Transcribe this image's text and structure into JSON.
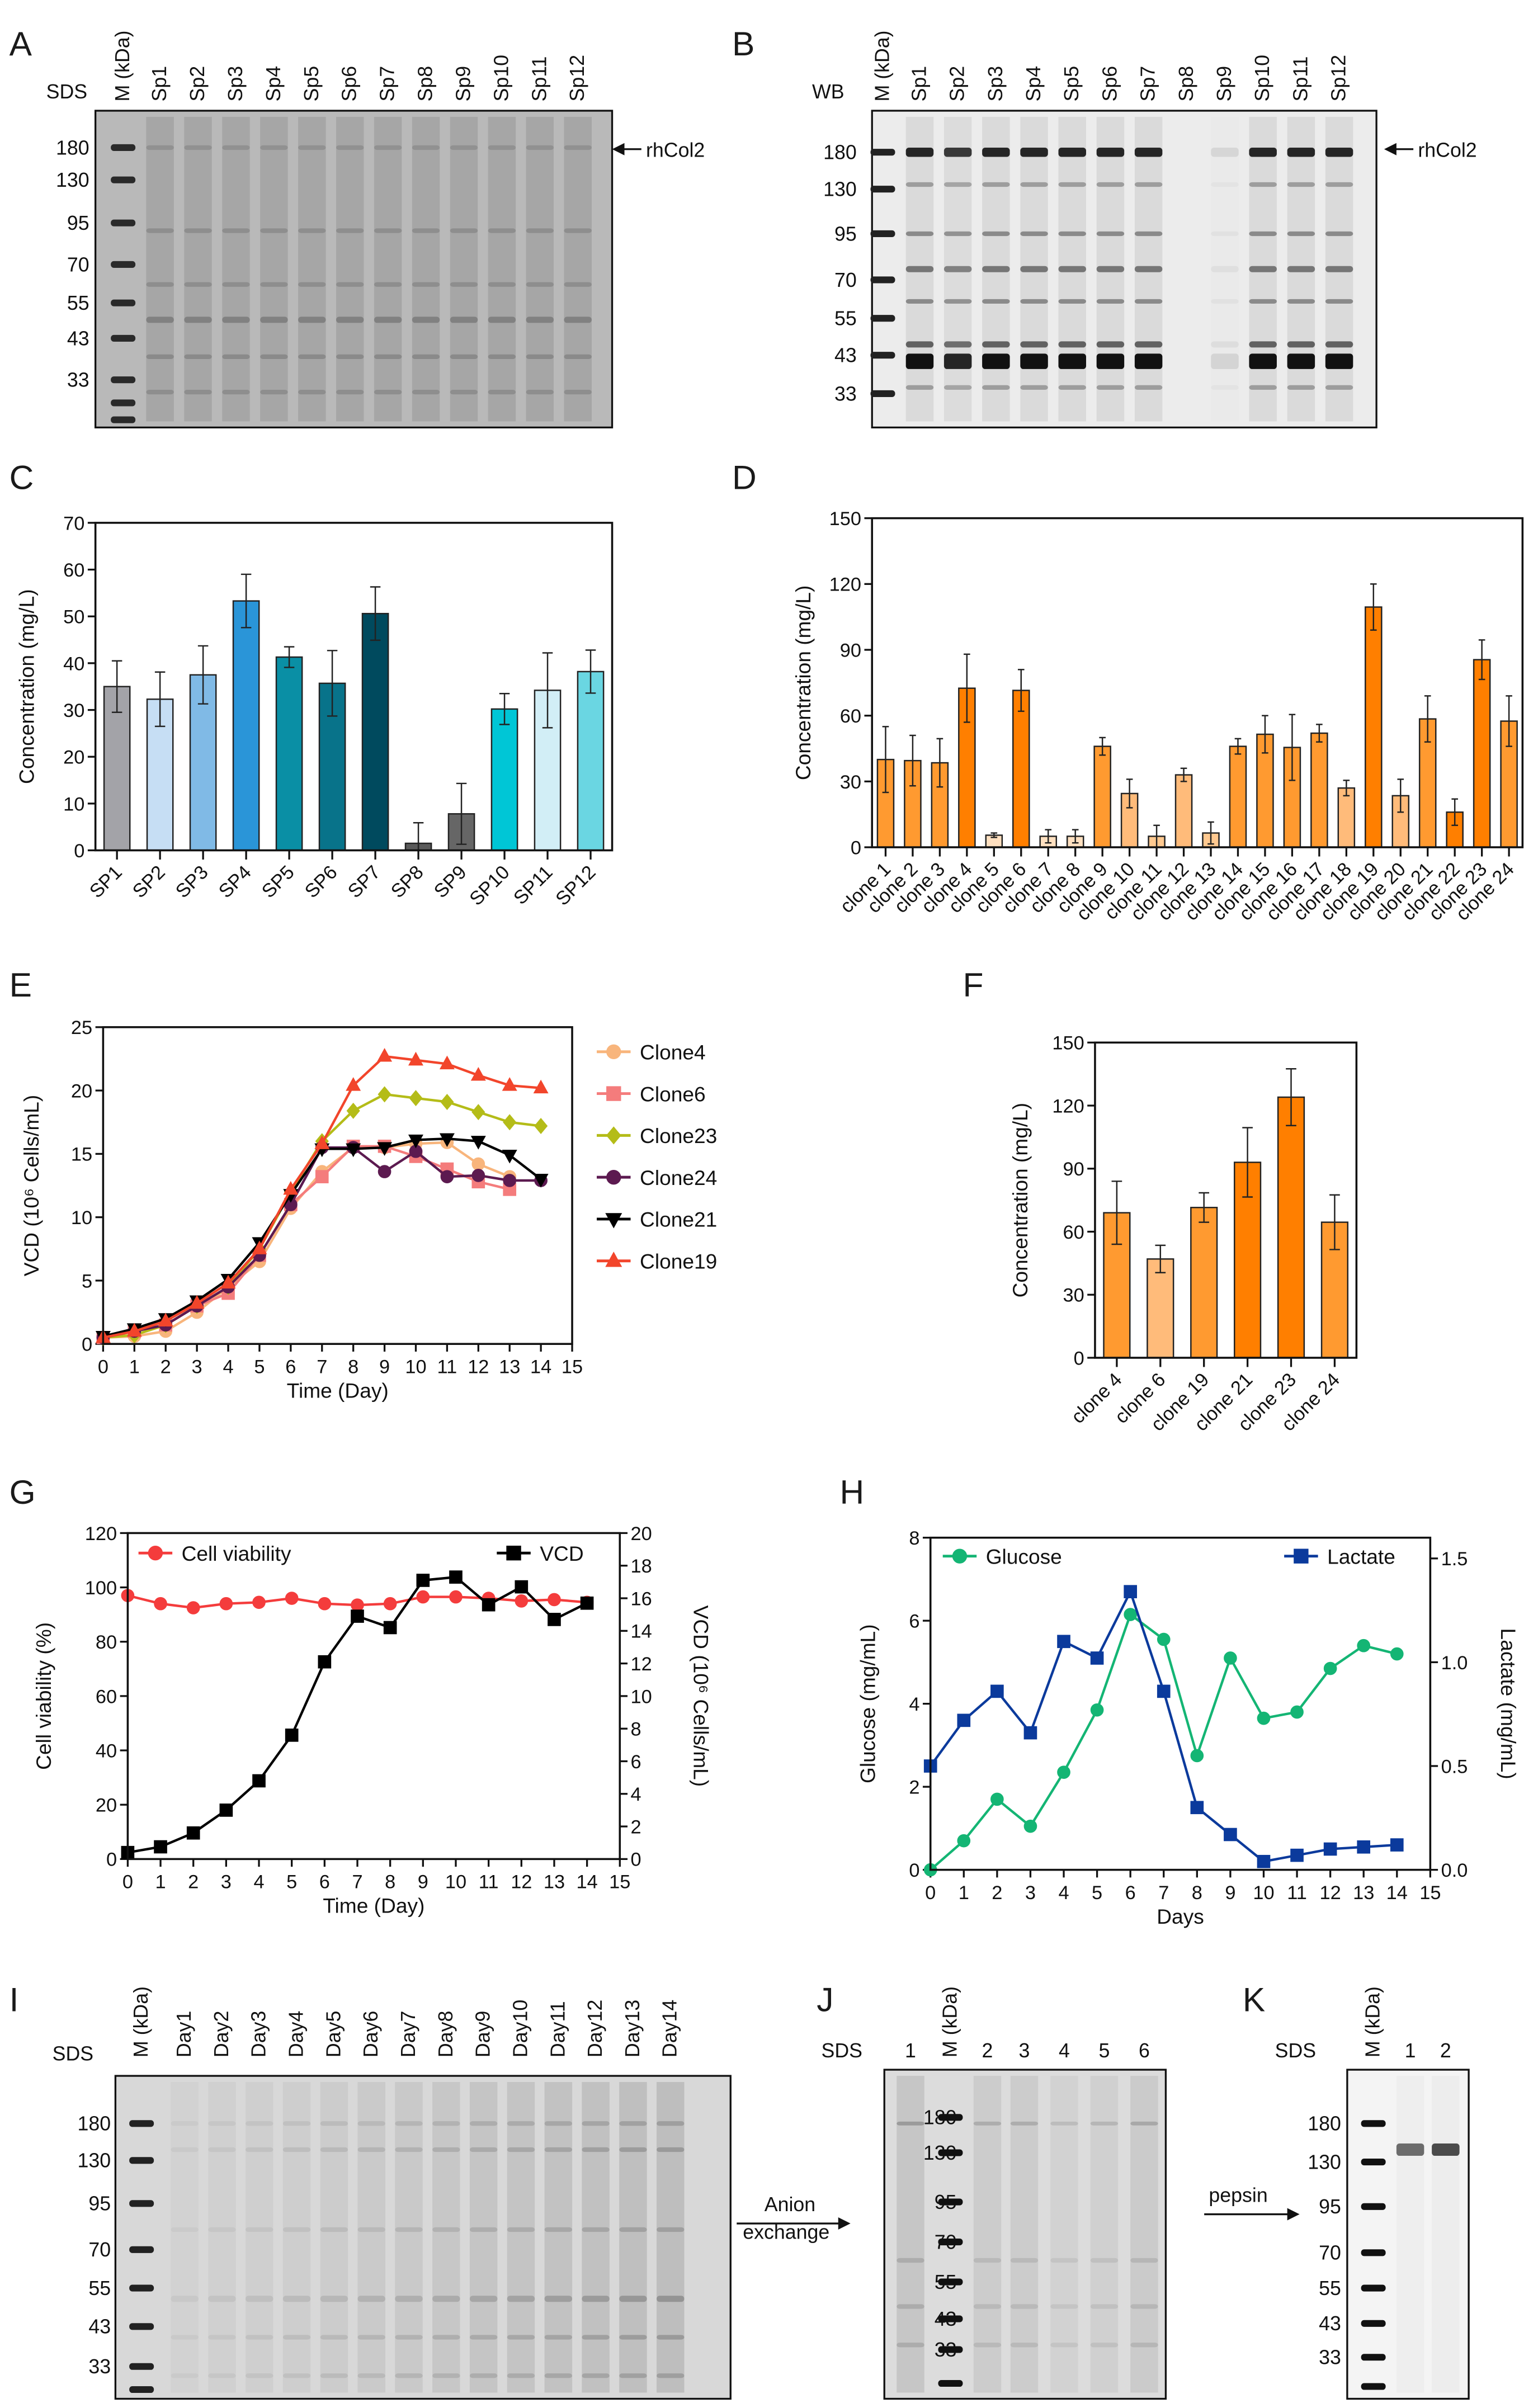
{
  "panels": {
    "A": {
      "letter": "A",
      "stain": "SDS",
      "marker_lane": "M (kDa)",
      "lanes": [
        "Sp1",
        "Sp2",
        "Sp3",
        "Sp4",
        "Sp5",
        "Sp6",
        "Sp7",
        "Sp8",
        "Sp9",
        "Sp10",
        "Sp11",
        "Sp12"
      ],
      "markers": [
        "180",
        "130",
        "95",
        "70",
        "55",
        "43",
        "33"
      ],
      "arrow_label": "rhCol2"
    },
    "B": {
      "letter": "B",
      "stain": "WB",
      "marker_lane": "M (kDa)",
      "lanes": [
        "Sp1",
        "Sp2",
        "Sp3",
        "Sp4",
        "Sp5",
        "Sp6",
        "Sp7",
        "Sp8",
        "Sp9",
        "Sp10",
        "Sp11",
        "Sp12"
      ],
      "markers": [
        "180",
        "130",
        "95",
        "70",
        "55",
        "43",
        "33"
      ],
      "arrow_label": "rhCol2"
    },
    "C": {
      "letter": "C"
    },
    "D": {
      "letter": "D"
    },
    "E": {
      "letter": "E"
    },
    "F": {
      "letter": "F"
    },
    "G": {
      "letter": "G"
    },
    "H": {
      "letter": "H"
    },
    "I": {
      "letter": "I",
      "stain": "SDS",
      "marker_lane": "M (kDa)",
      "lanes": [
        "Day1",
        "Day2",
        "Day3",
        "Day4",
        "Day5",
        "Day6",
        "Day7",
        "Day8",
        "Day9",
        "Day10",
        "Day11",
        "Day12",
        "Day13",
        "Day14"
      ],
      "markers": [
        "180",
        "130",
        "95",
        "70",
        "55",
        "43",
        "33"
      ],
      "arrow_label_1": "Anion",
      "arrow_label_2": "exchange"
    },
    "J": {
      "letter": "J",
      "stain": "SDS",
      "marker_lane": "M (kDa)",
      "lanes": [
        "1",
        "2",
        "3",
        "4",
        "5",
        "6"
      ],
      "markers": [
        "180",
        "130",
        "95",
        "70",
        "55",
        "43",
        "33"
      ],
      "arrow_label": "pepsin"
    },
    "K": {
      "letter": "K",
      "stain": "SDS",
      "marker_lane": "M (kDa)",
      "lanes": [
        "1",
        "2"
      ],
      "markers": [
        "180",
        "130",
        "95",
        "70",
        "55",
        "43",
        "33"
      ]
    }
  },
  "chart_data": [
    {
      "panel": "C",
      "type": "bar",
      "categories": [
        "SP1",
        "SP2",
        "SP3",
        "SP4",
        "SP5",
        "SP6",
        "SP7",
        "SP8",
        "SP9",
        "SP10",
        "SP11",
        "SP12"
      ],
      "values": [
        35.0,
        32.3,
        37.5,
        53.3,
        41.3,
        35.7,
        50.6,
        1.5,
        7.8,
        30.2,
        34.2,
        38.2
      ],
      "errors": [
        5.5,
        5.8,
        6.2,
        5.7,
        2.2,
        7.0,
        5.7,
        4.4,
        6.5,
        3.3,
        8.0,
        4.6
      ],
      "colors": [
        "#a3a3a8",
        "#c6def4",
        "#80bae6",
        "#2a95d8",
        "#0a8fa5",
        "#08738a",
        "#004a5e",
        "#5a5a5a",
        "#666666",
        "#00c6d6",
        "#d2eef6",
        "#6ad6e2"
      ],
      "ylabel": "Concentration (mg/L)",
      "ylim": [
        0,
        70
      ],
      "yticks": [
        0,
        10,
        20,
        30,
        40,
        50,
        60,
        70
      ],
      "grid": false
    },
    {
      "panel": "D",
      "type": "bar",
      "categories": [
        "clone 1",
        "clone 2",
        "clone 3",
        "clone 4",
        "clone 5",
        "clone 6",
        "clone 7",
        "clone 8",
        "clone 9",
        "clone 10",
        "clone 11",
        "clone 12",
        "clone 13",
        "clone 14",
        "clone 15",
        "clone 16",
        "clone 17",
        "clone 18",
        "clone 19",
        "clone 20",
        "clone 21",
        "clone 22",
        "clone 23",
        "clone 24"
      ],
      "values": [
        40,
        39.5,
        38.5,
        72.5,
        5.5,
        71.5,
        5,
        5,
        46,
        24.5,
        5,
        33,
        6.5,
        46,
        51.5,
        45.5,
        52,
        27,
        109.5,
        23.5,
        58.5,
        16,
        85.5,
        57.5
      ],
      "errors": [
        15,
        11.5,
        11,
        15.5,
        1,
        9.5,
        3,
        3,
        4,
        6.5,
        5,
        3,
        5,
        3.5,
        8.5,
        15,
        4,
        3.5,
        10.5,
        7.5,
        10.5,
        6,
        9,
        11.5
      ],
      "colors": [
        "#ff9a30",
        "#ff9a30",
        "#ff9a30",
        "#ff7f00",
        "#ffe0c0",
        "#ff7f00",
        "#ffe0c0",
        "#ffe0c0",
        "#ff9a30",
        "#ffbb7a",
        "#ffc990",
        "#ffbb7a",
        "#ffc990",
        "#ff9a30",
        "#ff9a30",
        "#ff9a30",
        "#ff9a30",
        "#ffbb7a",
        "#ff7f00",
        "#ffbb7a",
        "#ff9a30",
        "#ff7f00",
        "#ff7f00",
        "#ff9a30"
      ],
      "ylabel": "Concentration (mg/L)",
      "ylim": [
        0,
        150
      ],
      "yticks": [
        0,
        30,
        60,
        90,
        120,
        150
      ],
      "grid": false
    },
    {
      "panel": "E",
      "type": "line",
      "x": [
        0,
        1,
        2,
        3,
        4,
        5,
        6,
        7,
        8,
        9,
        10,
        11,
        12,
        13,
        14
      ],
      "xlabel": "Time (Day)",
      "ylabel": "VCD (10⁶ Cells/mL)",
      "xlim": [
        0,
        15
      ],
      "xticks": [
        0,
        1,
        2,
        3,
        4,
        5,
        6,
        7,
        8,
        9,
        10,
        11,
        12,
        13,
        14,
        15
      ],
      "ylim": [
        0,
        25
      ],
      "yticks": [
        0,
        5,
        10,
        15,
        20,
        25
      ],
      "legend": "right-outside",
      "grid": false,
      "series": [
        {
          "name": "Clone4",
          "color": "#f8b57c",
          "marker": "circle",
          "values": [
            0.5,
            0.6,
            1.0,
            2.5,
            4.5,
            6.5,
            10.7,
            13.6,
            15.5,
            15.5,
            15.8,
            15.9,
            14.2,
            13.2,
            null
          ]
        },
        {
          "name": "Clone6",
          "color": "#f47c7c",
          "marker": "square",
          "values": [
            0.5,
            1.0,
            1.5,
            3.0,
            4.0,
            7.0,
            11.0,
            13.2,
            15.6,
            15.6,
            14.8,
            13.8,
            12.8,
            12.2,
            null
          ]
        },
        {
          "name": "Clone23",
          "color": "#b4bc18",
          "marker": "diamond",
          "values": [
            0.5,
            0.7,
            1.5,
            3.0,
            4.5,
            7.5,
            12.0,
            16.0,
            18.4,
            19.7,
            19.4,
            19.1,
            18.3,
            17.5,
            17.2
          ]
        },
        {
          "name": "Clone24",
          "color": "#5c1a50",
          "marker": "circle",
          "values": [
            0.5,
            1.0,
            1.5,
            3.0,
            4.5,
            7.0,
            11.0,
            15.5,
            15.5,
            13.6,
            15.2,
            13.2,
            13.3,
            12.9,
            12.9
          ]
        },
        {
          "name": "Clone21",
          "color": "#000000",
          "marker": "triangle-down",
          "values": [
            0.6,
            1.2,
            2.0,
            3.4,
            5.1,
            8.0,
            11.8,
            15.4,
            15.4,
            15.5,
            16.1,
            16.2,
            16.0,
            14.9,
            13.0
          ]
        },
        {
          "name": "Clone19",
          "color": "#f2452b",
          "marker": "triangle",
          "values": [
            0.5,
            1.0,
            1.8,
            3.2,
            4.8,
            7.5,
            12.2,
            15.8,
            20.4,
            22.7,
            22.4,
            22.1,
            21.2,
            20.4,
            20.2
          ]
        }
      ]
    },
    {
      "panel": "F",
      "type": "bar",
      "categories": [
        "clone 4",
        "clone 6",
        "clone 19",
        "clone 21",
        "clone 23",
        "clone 24"
      ],
      "values": [
        69,
        47,
        71.5,
        93,
        124,
        64.5
      ],
      "errors": [
        15,
        6.5,
        7,
        16.5,
        13.5,
        13
      ],
      "colors": [
        "#ff9a30",
        "#ffbb7a",
        "#ff9a30",
        "#ff7f00",
        "#ff7f00",
        "#ff9a30"
      ],
      "ylabel": "Concentration (mg/L)",
      "ylim": [
        0,
        150
      ],
      "yticks": [
        0,
        30,
        60,
        90,
        120,
        150
      ],
      "grid": false
    },
    {
      "panel": "G",
      "type": "line",
      "x": [
        0,
        1,
        2,
        3,
        4,
        5,
        6,
        7,
        8,
        9,
        10,
        11,
        12,
        13,
        14
      ],
      "xlabel": "Time (Day)",
      "xlim": [
        0,
        15
      ],
      "xticks": [
        0,
        1,
        2,
        3,
        4,
        5,
        6,
        7,
        8,
        9,
        10,
        11,
        12,
        13,
        14,
        15
      ],
      "ylabel": "Cell viability (%)",
      "ylim": [
        0,
        120
      ],
      "yticks": [
        0,
        20,
        40,
        60,
        80,
        100,
        120
      ],
      "y2label": "VCD (10⁶ Cells/mL)",
      "y2lim": [
        0,
        20
      ],
      "y2ticks": [
        0,
        2,
        4,
        6,
        8,
        10,
        12,
        14,
        16,
        18,
        20
      ],
      "legend": "inside-top",
      "grid": false,
      "series": [
        {
          "name": "Cell viability",
          "color": "#f43c3c",
          "marker": "circle",
          "axis": "left",
          "values": [
            97,
            94,
            92.5,
            94,
            94.5,
            96,
            94,
            93.5,
            94,
            96.5,
            96.5,
            96,
            95,
            95.5,
            94.5
          ]
        },
        {
          "name": "VCD",
          "color": "#000000",
          "marker": "square",
          "axis": "right",
          "values": [
            0.4,
            0.75,
            1.6,
            3.0,
            4.8,
            7.6,
            12.1,
            14.9,
            14.2,
            17.1,
            17.3,
            15.6,
            16.7,
            14.7,
            15.7
          ]
        }
      ]
    },
    {
      "panel": "H",
      "type": "line",
      "x": [
        0,
        1,
        2,
        3,
        4,
        5,
        6,
        7,
        8,
        9,
        10,
        11,
        12,
        13,
        14
      ],
      "xlabel": "Days",
      "xlim": [
        0,
        15
      ],
      "xticks": [
        0,
        1,
        2,
        3,
        4,
        5,
        6,
        7,
        8,
        9,
        10,
        11,
        12,
        13,
        14,
        15
      ],
      "ylabel": "Glucose (mg/mL)",
      "ylim": [
        0,
        8
      ],
      "yticks": [
        0,
        2,
        4,
        6,
        8
      ],
      "y2label": "Lactate (mg/mL)",
      "y2lim": [
        0,
        1.6
      ],
      "y2ticks": [
        "0.0",
        "0.5",
        "1.0",
        "1.5"
      ],
      "legend": "inside-top",
      "grid": false,
      "series": [
        {
          "name": "Glucose",
          "color": "#14b574",
          "marker": "circle",
          "axis": "left",
          "values": [
            0,
            0.7,
            1.7,
            1.05,
            2.35,
            3.85,
            6.15,
            5.55,
            2.75,
            5.1,
            3.65,
            3.8,
            4.85,
            5.4,
            5.2
          ]
        },
        {
          "name": "Lactate",
          "color": "#0b3a9c",
          "marker": "square",
          "axis": "right",
          "values": [
            0.5,
            0.72,
            0.86,
            0.66,
            1.1,
            1.02,
            1.34,
            0.86,
            0.3,
            0.17,
            0.04,
            0.07,
            0.1,
            0.11,
            0.12
          ]
        }
      ]
    }
  ]
}
